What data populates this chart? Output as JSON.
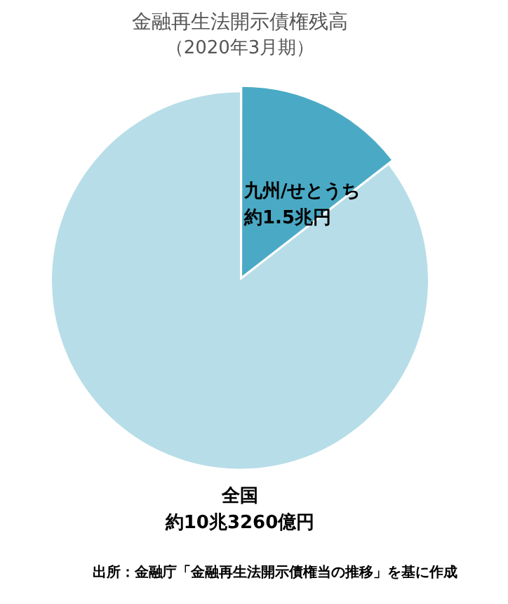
{
  "chart_data": {
    "type": "pie",
    "title": "金融再生法開示債権残高",
    "subtitle": "（2020年3月期）",
    "categories": [
      "九州/せとうち",
      "全国"
    ],
    "values": [
      14.5,
      85.5
    ],
    "value_labels": [
      "約1.5兆円",
      "約10兆3260億円"
    ],
    "colors": [
      "#4aaac5",
      "#b7dde8"
    ],
    "annotations": [
      "出所：金融庁「金融再生法開示債権当の推移」を基に作成"
    ],
    "legend": false
  }
}
